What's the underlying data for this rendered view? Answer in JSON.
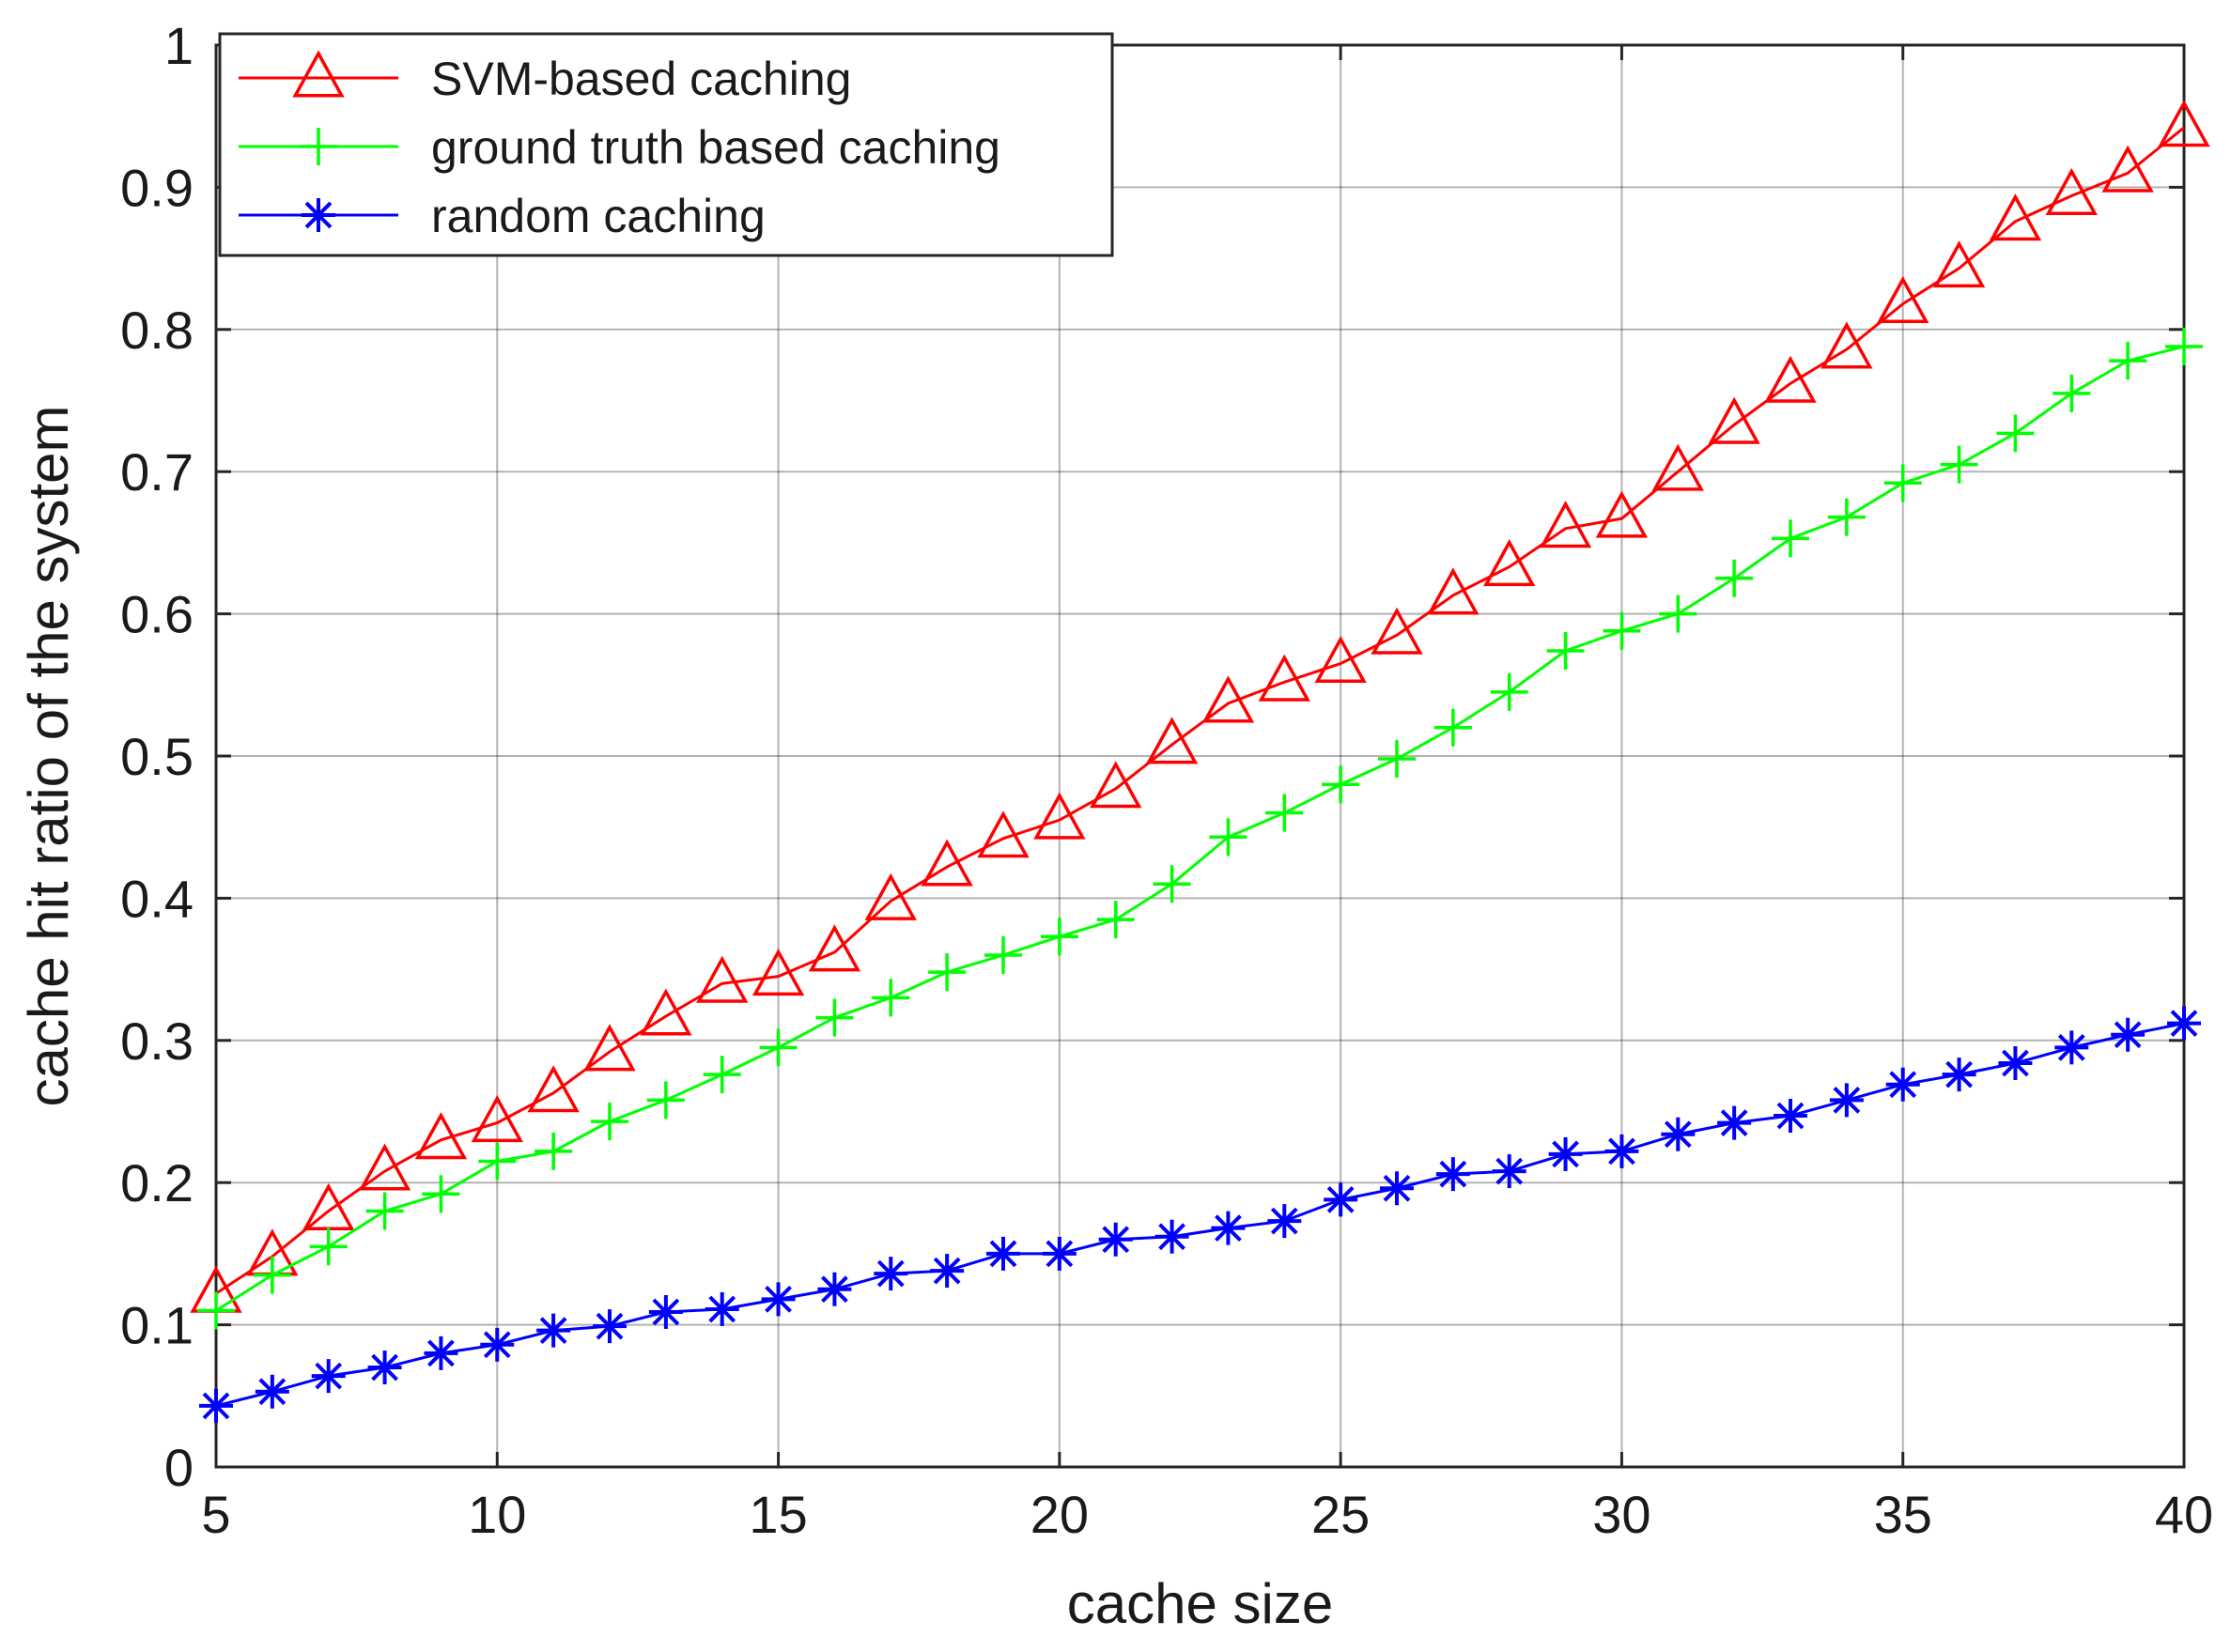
{
  "chart_data": {
    "type": "line",
    "title": "",
    "xlabel": "cache size",
    "ylabel": "cache hit ratio of the system",
    "xlim": [
      5,
      40
    ],
    "ylim": [
      0,
      1
    ],
    "xticks": [
      5,
      10,
      15,
      20,
      25,
      30,
      35,
      40
    ],
    "xtick_labels": [
      "5",
      "10",
      "15",
      "20",
      "25",
      "30",
      "35",
      "40"
    ],
    "yticks": [
      0,
      0.1,
      0.2,
      0.3,
      0.4,
      0.5,
      0.6,
      0.7,
      0.8,
      0.9,
      1
    ],
    "ytick_labels": [
      "0",
      "0.1",
      "0.2",
      "0.3",
      "0.4",
      "0.5",
      "0.6",
      "0.7",
      "0.8",
      "0.9",
      "1"
    ],
    "grid": true,
    "legend_position": "top-left",
    "x": [
      5,
      6,
      7,
      8,
      9,
      10,
      11,
      12,
      13,
      14,
      15,
      16,
      17,
      18,
      19,
      20,
      21,
      22,
      23,
      24,
      25,
      26,
      27,
      28,
      29,
      30,
      31,
      32,
      33,
      34,
      35,
      36,
      37,
      38,
      39,
      40
    ],
    "series": [
      {
        "name": "SVM-based caching",
        "color": "#ff0000",
        "marker": "triangle",
        "values": [
          0.122,
          0.148,
          0.18,
          0.208,
          0.23,
          0.242,
          0.263,
          0.292,
          0.317,
          0.34,
          0.345,
          0.362,
          0.398,
          0.422,
          0.442,
          0.455,
          0.477,
          0.508,
          0.537,
          0.552,
          0.565,
          0.585,
          0.613,
          0.633,
          0.66,
          0.667,
          0.7,
          0.733,
          0.762,
          0.786,
          0.818,
          0.843,
          0.876,
          0.894,
          0.91,
          0.942
        ]
      },
      {
        "name": "ground truth based caching",
        "color": "#00ff00",
        "marker": "plus",
        "values": [
          0.11,
          0.135,
          0.155,
          0.18,
          0.192,
          0.215,
          0.222,
          0.243,
          0.258,
          0.276,
          0.295,
          0.316,
          0.33,
          0.348,
          0.36,
          0.373,
          0.385,
          0.41,
          0.443,
          0.46,
          0.48,
          0.498,
          0.52,
          0.545,
          0.574,
          0.588,
          0.6,
          0.625,
          0.653,
          0.668,
          0.692,
          0.705,
          0.727,
          0.755,
          0.778,
          0.788
        ]
      },
      {
        "name": "random caching",
        "color": "#0000ff",
        "marker": "asterisk",
        "values": [
          0.043,
          0.053,
          0.064,
          0.07,
          0.08,
          0.086,
          0.096,
          0.099,
          0.109,
          0.111,
          0.118,
          0.125,
          0.136,
          0.138,
          0.15,
          0.15,
          0.16,
          0.162,
          0.168,
          0.173,
          0.188,
          0.196,
          0.206,
          0.208,
          0.22,
          0.222,
          0.234,
          0.242,
          0.247,
          0.258,
          0.269,
          0.276,
          0.284,
          0.295,
          0.304,
          0.312
        ]
      }
    ]
  }
}
